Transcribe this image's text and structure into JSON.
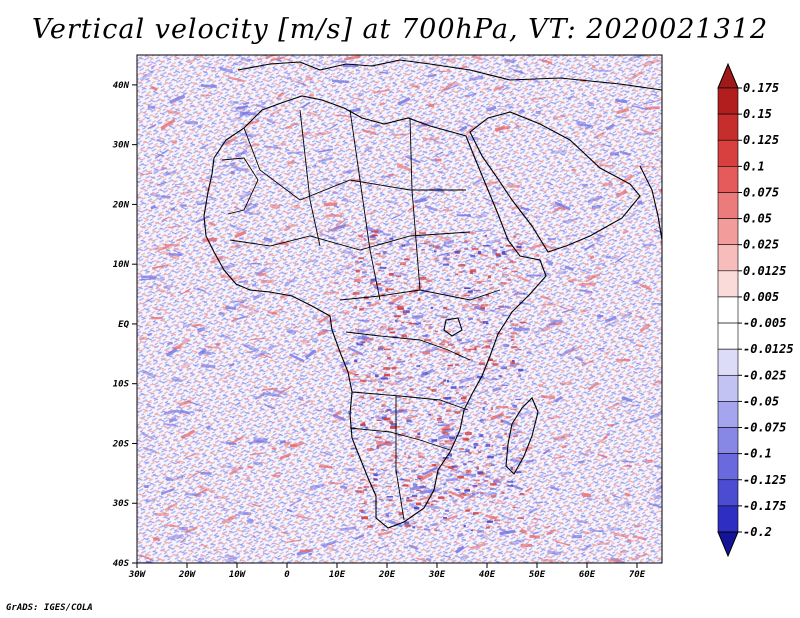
{
  "title": "Vertical velocity [m/s] at 700hPa, VT: 2020021312",
  "credit": "GrADS: IGES/COLA",
  "map": {
    "projection": "latlon",
    "lon_range": [
      -30,
      75
    ],
    "lat_range": [
      -40,
      45
    ],
    "x_ticks": [
      {
        "lon": -30,
        "label": "30W"
      },
      {
        "lon": -20,
        "label": "20W"
      },
      {
        "lon": -10,
        "label": "10W"
      },
      {
        "lon": 0,
        "label": "0"
      },
      {
        "lon": 10,
        "label": "10E"
      },
      {
        "lon": 20,
        "label": "20E"
      },
      {
        "lon": 30,
        "label": "30E"
      },
      {
        "lon": 40,
        "label": "40E"
      },
      {
        "lon": 50,
        "label": "50E"
      },
      {
        "lon": 60,
        "label": "60E"
      },
      {
        "lon": 70,
        "label": "70E"
      }
    ],
    "y_ticks": [
      {
        "lat": 40,
        "label": "40N"
      },
      {
        "lat": 30,
        "label": "30N"
      },
      {
        "lat": 20,
        "label": "20N"
      },
      {
        "lat": 10,
        "label": "10N"
      },
      {
        "lat": 0,
        "label": "EQ"
      },
      {
        "lat": -10,
        "label": "10S"
      },
      {
        "lat": -20,
        "label": "20S"
      },
      {
        "lat": -30,
        "label": "30S"
      },
      {
        "lat": -40,
        "label": "40S"
      }
    ]
  },
  "colorbar": {
    "levels": [
      {
        "label": "0.175",
        "color": "#b21e1e"
      },
      {
        "label": "0.15",
        "color": "#c62d2d"
      },
      {
        "label": "0.125",
        "color": "#d84040"
      },
      {
        "label": "0.1",
        "color": "#e55a5a"
      },
      {
        "label": "0.075",
        "color": "#ec7b7b"
      },
      {
        "label": "0.05",
        "color": "#f29c9c"
      },
      {
        "label": "0.025",
        "color": "#f7bcbc"
      },
      {
        "label": "0.0125",
        "color": "#fbdada"
      },
      {
        "label": "0.005",
        "color": "#ffffff"
      },
      {
        "label": "-0.005",
        "color": "#ffffff"
      },
      {
        "label": "-0.0125",
        "color": "#dcdcf8"
      },
      {
        "label": "-0.025",
        "color": "#c2c2f3"
      },
      {
        "label": "-0.05",
        "color": "#a5a5ee"
      },
      {
        "label": "-0.075",
        "color": "#8787e6"
      },
      {
        "label": "-0.1",
        "color": "#6a6ade"
      },
      {
        "label": "-0.125",
        "color": "#4c4cd2"
      },
      {
        "label": "-0.175",
        "color": "#2e2ec2"
      },
      {
        "label": "-0.2",
        "color": "#1a1aa8"
      }
    ],
    "top_color": "#a01818",
    "bottom_color": "#14149a"
  },
  "colors": {
    "positive": "#e86b6b",
    "negative": "#7575e3",
    "land_outline": "#000000"
  }
}
